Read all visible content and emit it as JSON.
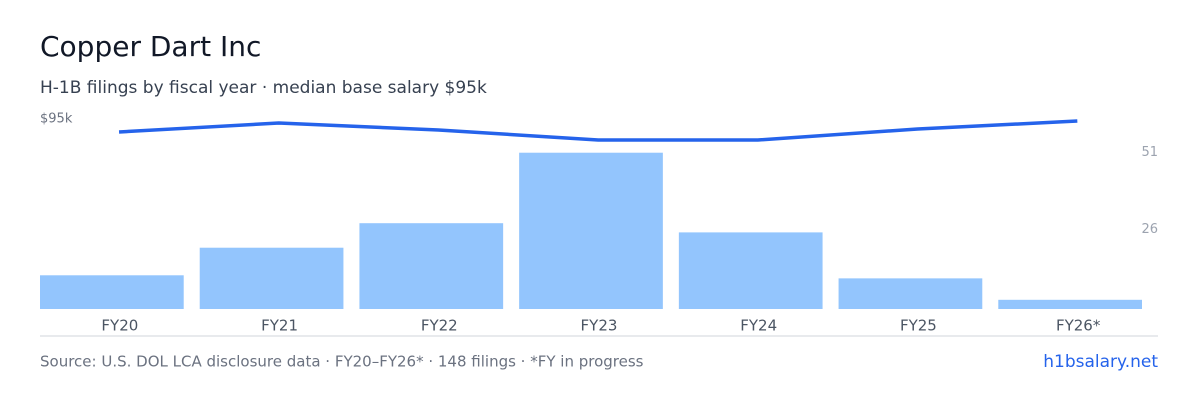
{
  "chart_data": {
    "type": "bar",
    "title": "Copper Dart Inc",
    "subtitle": "H-1B filings by fiscal year · median base salary $95k",
    "categories": [
      "FY20",
      "FY21",
      "FY22",
      "FY23",
      "FY24",
      "FY25",
      "FY26*"
    ],
    "series": [
      {
        "type": "bar",
        "axis": "y2",
        "color": "#93c5fd",
        "values": [
          11,
          20,
          28,
          51,
          25,
          10,
          3
        ]
      },
      {
        "type": "line",
        "color": "#2563eb",
        "values": [
          88500,
          93000,
          89500,
          84500,
          84500,
          90000,
          94000
        ]
      }
    ],
    "ylim": [
      0,
      95000
    ],
    "yticks": [
      {
        "value": 95000,
        "label": "$95k"
      }
    ],
    "y2lim": [
      0,
      62
    ],
    "y2ticks": [
      26,
      51
    ],
    "source": "Source: U.S. DOL LCA disclosure data · FY20–FY26* · 148 filings · *FY in progress",
    "link": "h1bsalary.net"
  }
}
